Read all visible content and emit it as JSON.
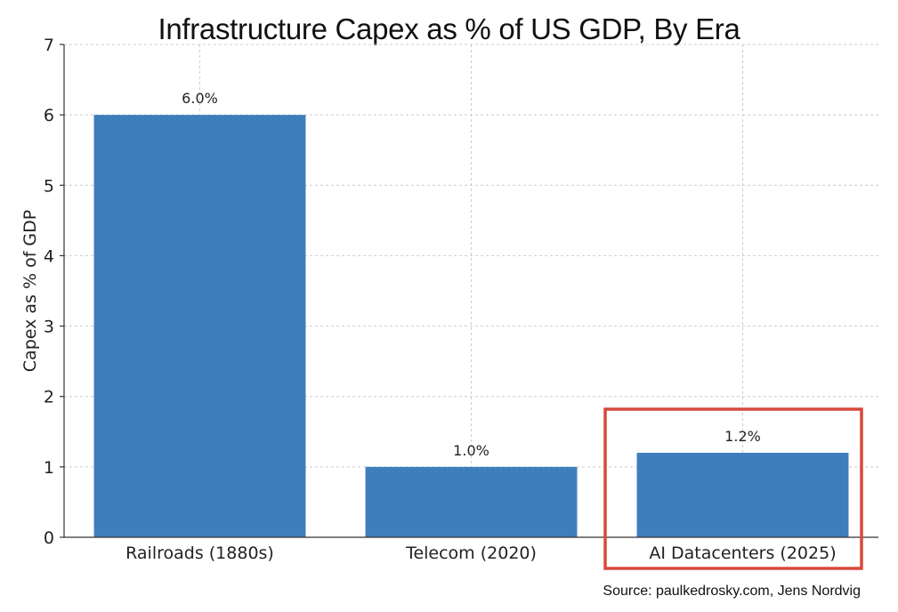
{
  "chart_data": {
    "type": "bar",
    "title": "Infrastructure Capex as % of US GDP, By Era",
    "xlabel": "",
    "ylabel": "Capex as % of GDP",
    "ylim": [
      0,
      7
    ],
    "yticks": [
      "0",
      "1",
      "2",
      "3",
      "4",
      "5",
      "6",
      "7"
    ],
    "categories": [
      "Railroads (1880s)",
      "Telecom (2020)",
      "AI Datacenters (2025)"
    ],
    "values": [
      6.0,
      1.0,
      1.2
    ],
    "data_labels": [
      "6.0%",
      "1.0%",
      "1.2%"
    ],
    "grid": true,
    "highlighted_category": "AI Datacenters (2025)",
    "colors": {
      "bar": "#3f7ebd",
      "highlight_box": "#d8493a",
      "grid": "#cccccc"
    }
  },
  "source": "Source: paulkedrosky.com, Jens Nordvig"
}
